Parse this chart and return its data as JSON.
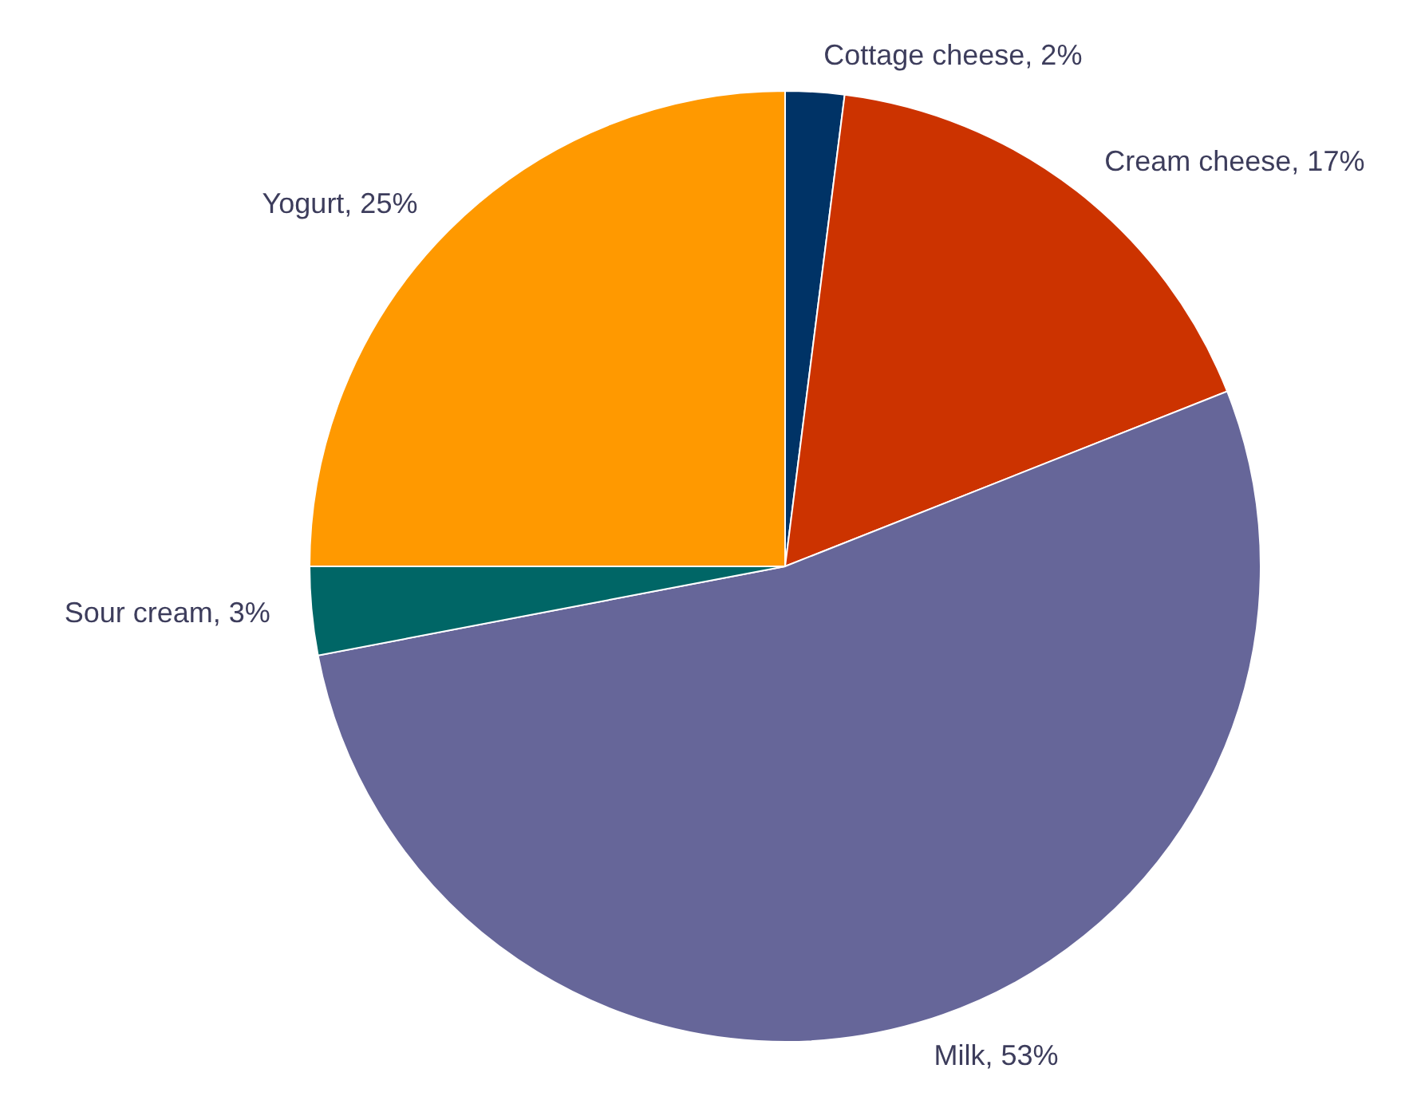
{
  "chart_data": {
    "type": "pie",
    "categories": [
      "Cottage cheese",
      "Cream cheese",
      "Milk",
      "Sour cream",
      "Yogurt"
    ],
    "values": [
      2,
      17,
      53,
      3,
      25
    ],
    "colors": [
      "#003366",
      "#cc3300",
      "#666699",
      "#006666",
      "#ff9900"
    ],
    "value_labels": [
      "2%",
      "17%",
      "53%",
      "3%",
      "25%"
    ]
  }
}
